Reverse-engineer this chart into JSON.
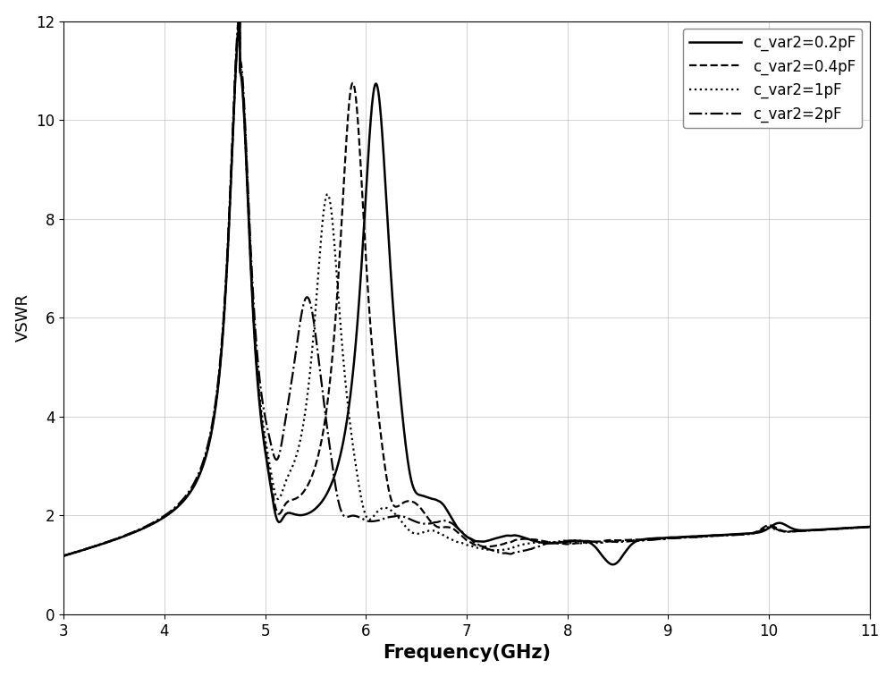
{
  "title": "",
  "xlabel": "Frequency(GHz)",
  "ylabel": "VSWR",
  "xlim": [
    3,
    11
  ],
  "ylim": [
    0,
    12
  ],
  "xticks": [
    3,
    4,
    5,
    6,
    7,
    8,
    9,
    10,
    11
  ],
  "yticks": [
    0,
    2,
    4,
    6,
    8,
    10,
    12
  ],
  "grid_color": "#b0b0b0",
  "background_color": "#ffffff",
  "line_color": "#000000",
  "legend_labels": [
    "c_var2=0.2pF",
    "c_var2=0.4pF",
    "c_var2=1pF",
    "c_var2=2pF"
  ],
  "legend_linestyles": [
    "-",
    "--",
    ":",
    "-."
  ],
  "legend_linewidths": [
    1.8,
    1.6,
    1.6,
    1.6
  ],
  "xlabel_fontsize": 15,
  "ylabel_fontsize": 13,
  "tick_fontsize": 12,
  "legend_fontsize": 12
}
